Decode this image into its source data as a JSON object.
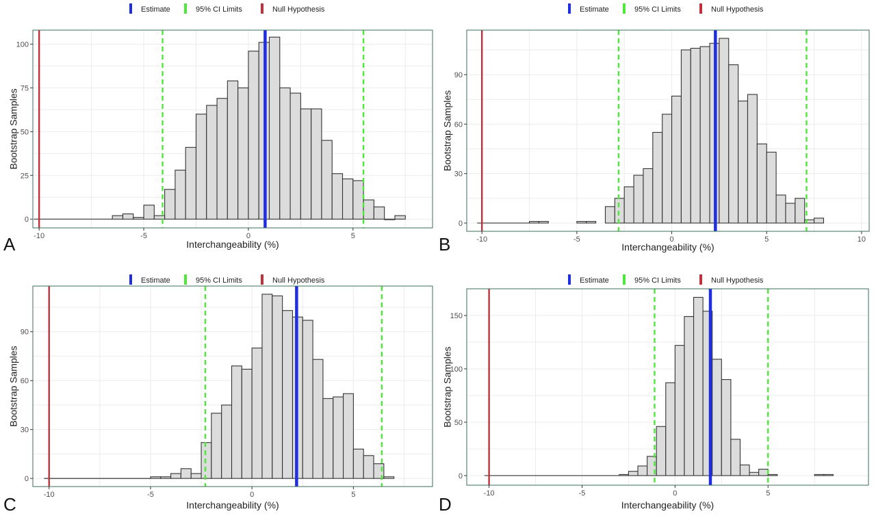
{
  "colors": {
    "estimate": "#1f2fe0",
    "ci": "#4ce83a",
    "null": "#c0303a",
    "bar_fill": "#dcdcdc",
    "bar_stroke": "#333333",
    "panel_border": "#3a6e5a",
    "grid": "#ebebeb",
    "tick_text": "#4d4d4d"
  },
  "chart_data": [
    {
      "panel_label": "A",
      "type": "bar",
      "xlabel": "Interchangeability (%)",
      "ylabel": "Bootstrap Samples",
      "legend": {
        "position": "top",
        "entries": [
          "Estimate",
          "95% CI Limits",
          "Null Hypothesis"
        ]
      },
      "grid": true,
      "xlim": [
        -10.3,
        8.8
      ],
      "ylim": [
        -5,
        108
      ],
      "xticks": [
        -10,
        -5,
        0,
        5
      ],
      "yticks": [
        0,
        25,
        50,
        75,
        100
      ],
      "bin_width": 0.5,
      "bins": [
        {
          "x": -6.5,
          "count": 2
        },
        {
          "x": -6.0,
          "count": 3
        },
        {
          "x": -5.5,
          "count": 1
        },
        {
          "x": -5.0,
          "count": 8
        },
        {
          "x": -4.5,
          "count": 2
        },
        {
          "x": -4.0,
          "count": 17
        },
        {
          "x": -3.5,
          "count": 28
        },
        {
          "x": -3.0,
          "count": 41
        },
        {
          "x": -2.5,
          "count": 60
        },
        {
          "x": -2.0,
          "count": 65
        },
        {
          "x": -1.5,
          "count": 69
        },
        {
          "x": -1.0,
          "count": 79
        },
        {
          "x": -0.5,
          "count": 75
        },
        {
          "x": 0.0,
          "count": 96
        },
        {
          "x": 0.5,
          "count": 101
        },
        {
          "x": 1.0,
          "count": 104
        },
        {
          "x": 1.5,
          "count": 75
        },
        {
          "x": 2.0,
          "count": 72
        },
        {
          "x": 2.5,
          "count": 63
        },
        {
          "x": 3.0,
          "count": 63
        },
        {
          "x": 3.5,
          "count": 45
        },
        {
          "x": 4.0,
          "count": 26
        },
        {
          "x": 4.5,
          "count": 23
        },
        {
          "x": 5.0,
          "count": 22
        },
        {
          "x": 5.5,
          "count": 11
        },
        {
          "x": 6.0,
          "count": 7
        },
        {
          "x": 6.5,
          "count": 0
        },
        {
          "x": 7.0,
          "count": 2
        }
      ],
      "estimate": 0.8,
      "ci_limits": [
        -4.1,
        5.5
      ],
      "null_hypothesis": -10
    },
    {
      "panel_label": "B",
      "type": "bar",
      "xlabel": "Interchangeability (%)",
      "ylabel": "Bootstrap Samples",
      "legend": {
        "position": "top",
        "entries": [
          "Estimate",
          "95% CI Limits",
          "Null Hypothesis"
        ]
      },
      "grid": true,
      "xlim": [
        -10.8,
        10.4
      ],
      "ylim": [
        -5,
        117
      ],
      "xticks": [
        -10,
        -5,
        0,
        5,
        10
      ],
      "yticks": [
        0,
        30,
        60,
        90
      ],
      "bin_width": 0.5,
      "bins": [
        {
          "x": -7.5,
          "count": 1
        },
        {
          "x": -7.0,
          "count": 1
        },
        {
          "x": -5.0,
          "count": 1
        },
        {
          "x": -4.5,
          "count": 1
        },
        {
          "x": -3.5,
          "count": 10
        },
        {
          "x": -3.0,
          "count": 15
        },
        {
          "x": -2.5,
          "count": 22
        },
        {
          "x": -2.0,
          "count": 29
        },
        {
          "x": -1.5,
          "count": 33
        },
        {
          "x": -1.0,
          "count": 55
        },
        {
          "x": -0.5,
          "count": 66
        },
        {
          "x": 0.0,
          "count": 77
        },
        {
          "x": 0.5,
          "count": 105
        },
        {
          "x": 1.0,
          "count": 106
        },
        {
          "x": 1.5,
          "count": 107
        },
        {
          "x": 2.0,
          "count": 109
        },
        {
          "x": 2.5,
          "count": 112
        },
        {
          "x": 3.0,
          "count": 96
        },
        {
          "x": 3.5,
          "count": 74
        },
        {
          "x": 4.0,
          "count": 78
        },
        {
          "x": 4.5,
          "count": 48
        },
        {
          "x": 5.0,
          "count": 43
        },
        {
          "x": 5.5,
          "count": 17
        },
        {
          "x": 6.0,
          "count": 12
        },
        {
          "x": 6.5,
          "count": 15
        },
        {
          "x": 7.0,
          "count": 2
        },
        {
          "x": 7.5,
          "count": 3
        }
      ],
      "estimate": 2.3,
      "ci_limits": [
        -2.8,
        7.1
      ],
      "null_hypothesis": -10
    },
    {
      "panel_label": "C",
      "type": "bar",
      "xlabel": "Interchangeability (%)",
      "ylabel": "Bootstrap Samples",
      "legend": {
        "position": "top",
        "entries": [
          "Estimate",
          "95% CI Limits",
          "Null Hypothesis"
        ]
      },
      "grid": true,
      "xlim": [
        -10.8,
        8.9
      ],
      "ylim": [
        -5,
        118
      ],
      "xticks": [
        -10,
        -5,
        0,
        5
      ],
      "yticks": [
        0,
        30,
        60,
        90
      ],
      "bin_width": 0.5,
      "bins": [
        {
          "x": -5.0,
          "count": 1
        },
        {
          "x": -4.5,
          "count": 1
        },
        {
          "x": -4.0,
          "count": 3
        },
        {
          "x": -3.5,
          "count": 6
        },
        {
          "x": -3.0,
          "count": 3
        },
        {
          "x": -2.5,
          "count": 22
        },
        {
          "x": -2.0,
          "count": 40
        },
        {
          "x": -1.5,
          "count": 45
        },
        {
          "x": -1.0,
          "count": 69
        },
        {
          "x": -0.5,
          "count": 67
        },
        {
          "x": 0.0,
          "count": 80
        },
        {
          "x": 0.5,
          "count": 113
        },
        {
          "x": 1.0,
          "count": 112
        },
        {
          "x": 1.5,
          "count": 103
        },
        {
          "x": 2.0,
          "count": 99
        },
        {
          "x": 2.5,
          "count": 97
        },
        {
          "x": 3.0,
          "count": 73
        },
        {
          "x": 3.5,
          "count": 49
        },
        {
          "x": 4.0,
          "count": 50
        },
        {
          "x": 4.5,
          "count": 52
        },
        {
          "x": 5.0,
          "count": 18
        },
        {
          "x": 5.5,
          "count": 14
        },
        {
          "x": 6.0,
          "count": 9
        },
        {
          "x": 6.5,
          "count": 1
        }
      ],
      "estimate": 2.2,
      "ci_limits": [
        -2.3,
        6.4
      ],
      "null_hypothesis": -10
    },
    {
      "panel_label": "D",
      "type": "bar",
      "xlabel": "Interchangeability (%)",
      "ylabel": "Bootstrap Samples",
      "legend": {
        "position": "top",
        "entries": [
          "Estimate",
          "95% CI Limits",
          "Null Hypothesis"
        ]
      },
      "grid": true,
      "xlim": [
        -11.2,
        10.4
      ],
      "ylim": [
        -9,
        175
      ],
      "xticks": [
        -10,
        -5,
        0,
        5
      ],
      "yticks": [
        0,
        50,
        100,
        150
      ],
      "bin_width": 0.5,
      "bins": [
        {
          "x": -3.0,
          "count": 1
        },
        {
          "x": -2.5,
          "count": 4
        },
        {
          "x": -2.0,
          "count": 9
        },
        {
          "x": -1.5,
          "count": 18
        },
        {
          "x": -1.0,
          "count": 46
        },
        {
          "x": -0.5,
          "count": 87
        },
        {
          "x": 0.0,
          "count": 122
        },
        {
          "x": 0.5,
          "count": 149
        },
        {
          "x": 1.0,
          "count": 167
        },
        {
          "x": 1.5,
          "count": 154
        },
        {
          "x": 2.0,
          "count": 109
        },
        {
          "x": 2.5,
          "count": 90
        },
        {
          "x": 3.0,
          "count": 34
        },
        {
          "x": 3.5,
          "count": 10
        },
        {
          "x": 4.0,
          "count": 3
        },
        {
          "x": 4.5,
          "count": 6
        },
        {
          "x": 5.0,
          "count": 1
        },
        {
          "x": 7.5,
          "count": 1
        },
        {
          "x": 8.0,
          "count": 1
        }
      ],
      "estimate": 1.9,
      "ci_limits": [
        -1.1,
        5.0
      ],
      "null_hypothesis": -10
    }
  ]
}
